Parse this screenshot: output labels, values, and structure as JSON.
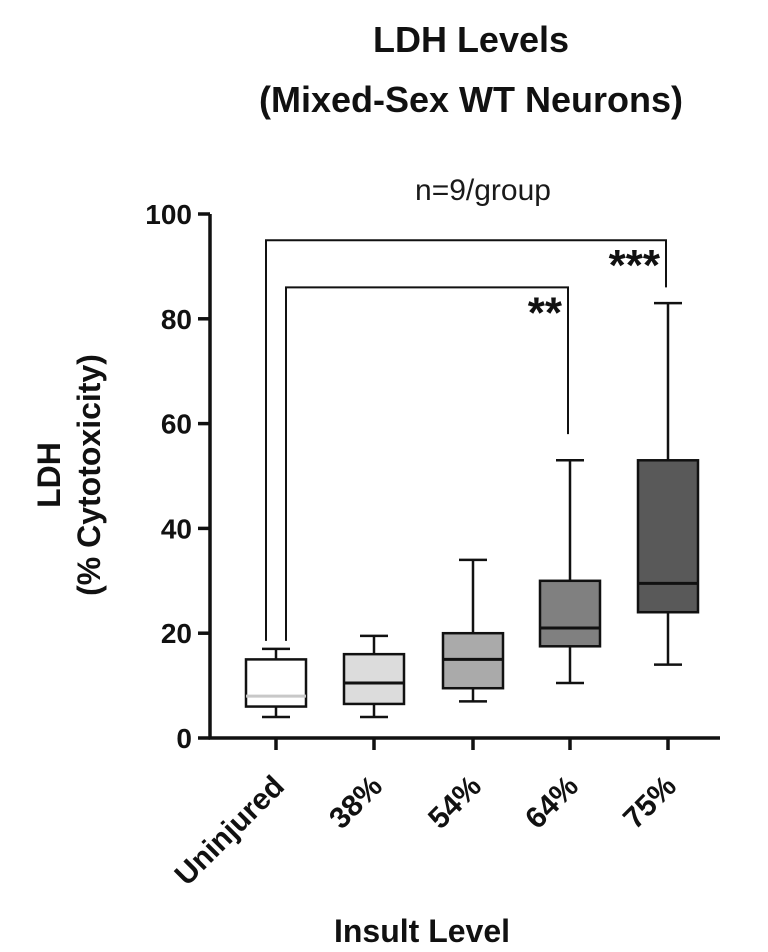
{
  "chart_data": {
    "type": "box",
    "title": [
      "LDH Levels",
      "(Mixed-Sex WT Neurons)"
    ],
    "subtitle": "n=9/group",
    "xlabel": "Insult Level",
    "ylabel": [
      "LDH",
      "(% Cytotoxicity)"
    ],
    "ylim": [
      0,
      100
    ],
    "yticks": [
      0,
      20,
      40,
      60,
      80,
      100
    ],
    "categories": [
      "Uninjured",
      "38%",
      "54%",
      "64%",
      "75%"
    ],
    "boxes": [
      {
        "category": "Uninjured",
        "min": 4,
        "q1": 6,
        "median": 8,
        "q3": 15,
        "max": 17,
        "fill": "#ffffff"
      },
      {
        "category": "38%",
        "min": 4,
        "q1": 6.5,
        "median": 10.5,
        "q3": 16,
        "max": 19.5,
        "fill": "#dcdcdc"
      },
      {
        "category": "54%",
        "min": 7,
        "q1": 9.5,
        "median": 15,
        "q3": 20,
        "max": 34,
        "fill": "#aaaaaa"
      },
      {
        "category": "64%",
        "min": 10.5,
        "q1": 17.5,
        "median": 21,
        "q3": 30,
        "max": 53,
        "fill": "#808080"
      },
      {
        "category": "75%",
        "min": 14,
        "q1": 24,
        "median": 29.5,
        "q3": 53,
        "max": 83,
        "fill": "#595959"
      }
    ],
    "significance": [
      {
        "from": "Uninjured",
        "to": "64%",
        "level": 86,
        "end_value": 58,
        "label": "**"
      },
      {
        "from": "Uninjured",
        "to": "75%",
        "level": 95,
        "end_value": 86,
        "label": "***"
      }
    ]
  }
}
